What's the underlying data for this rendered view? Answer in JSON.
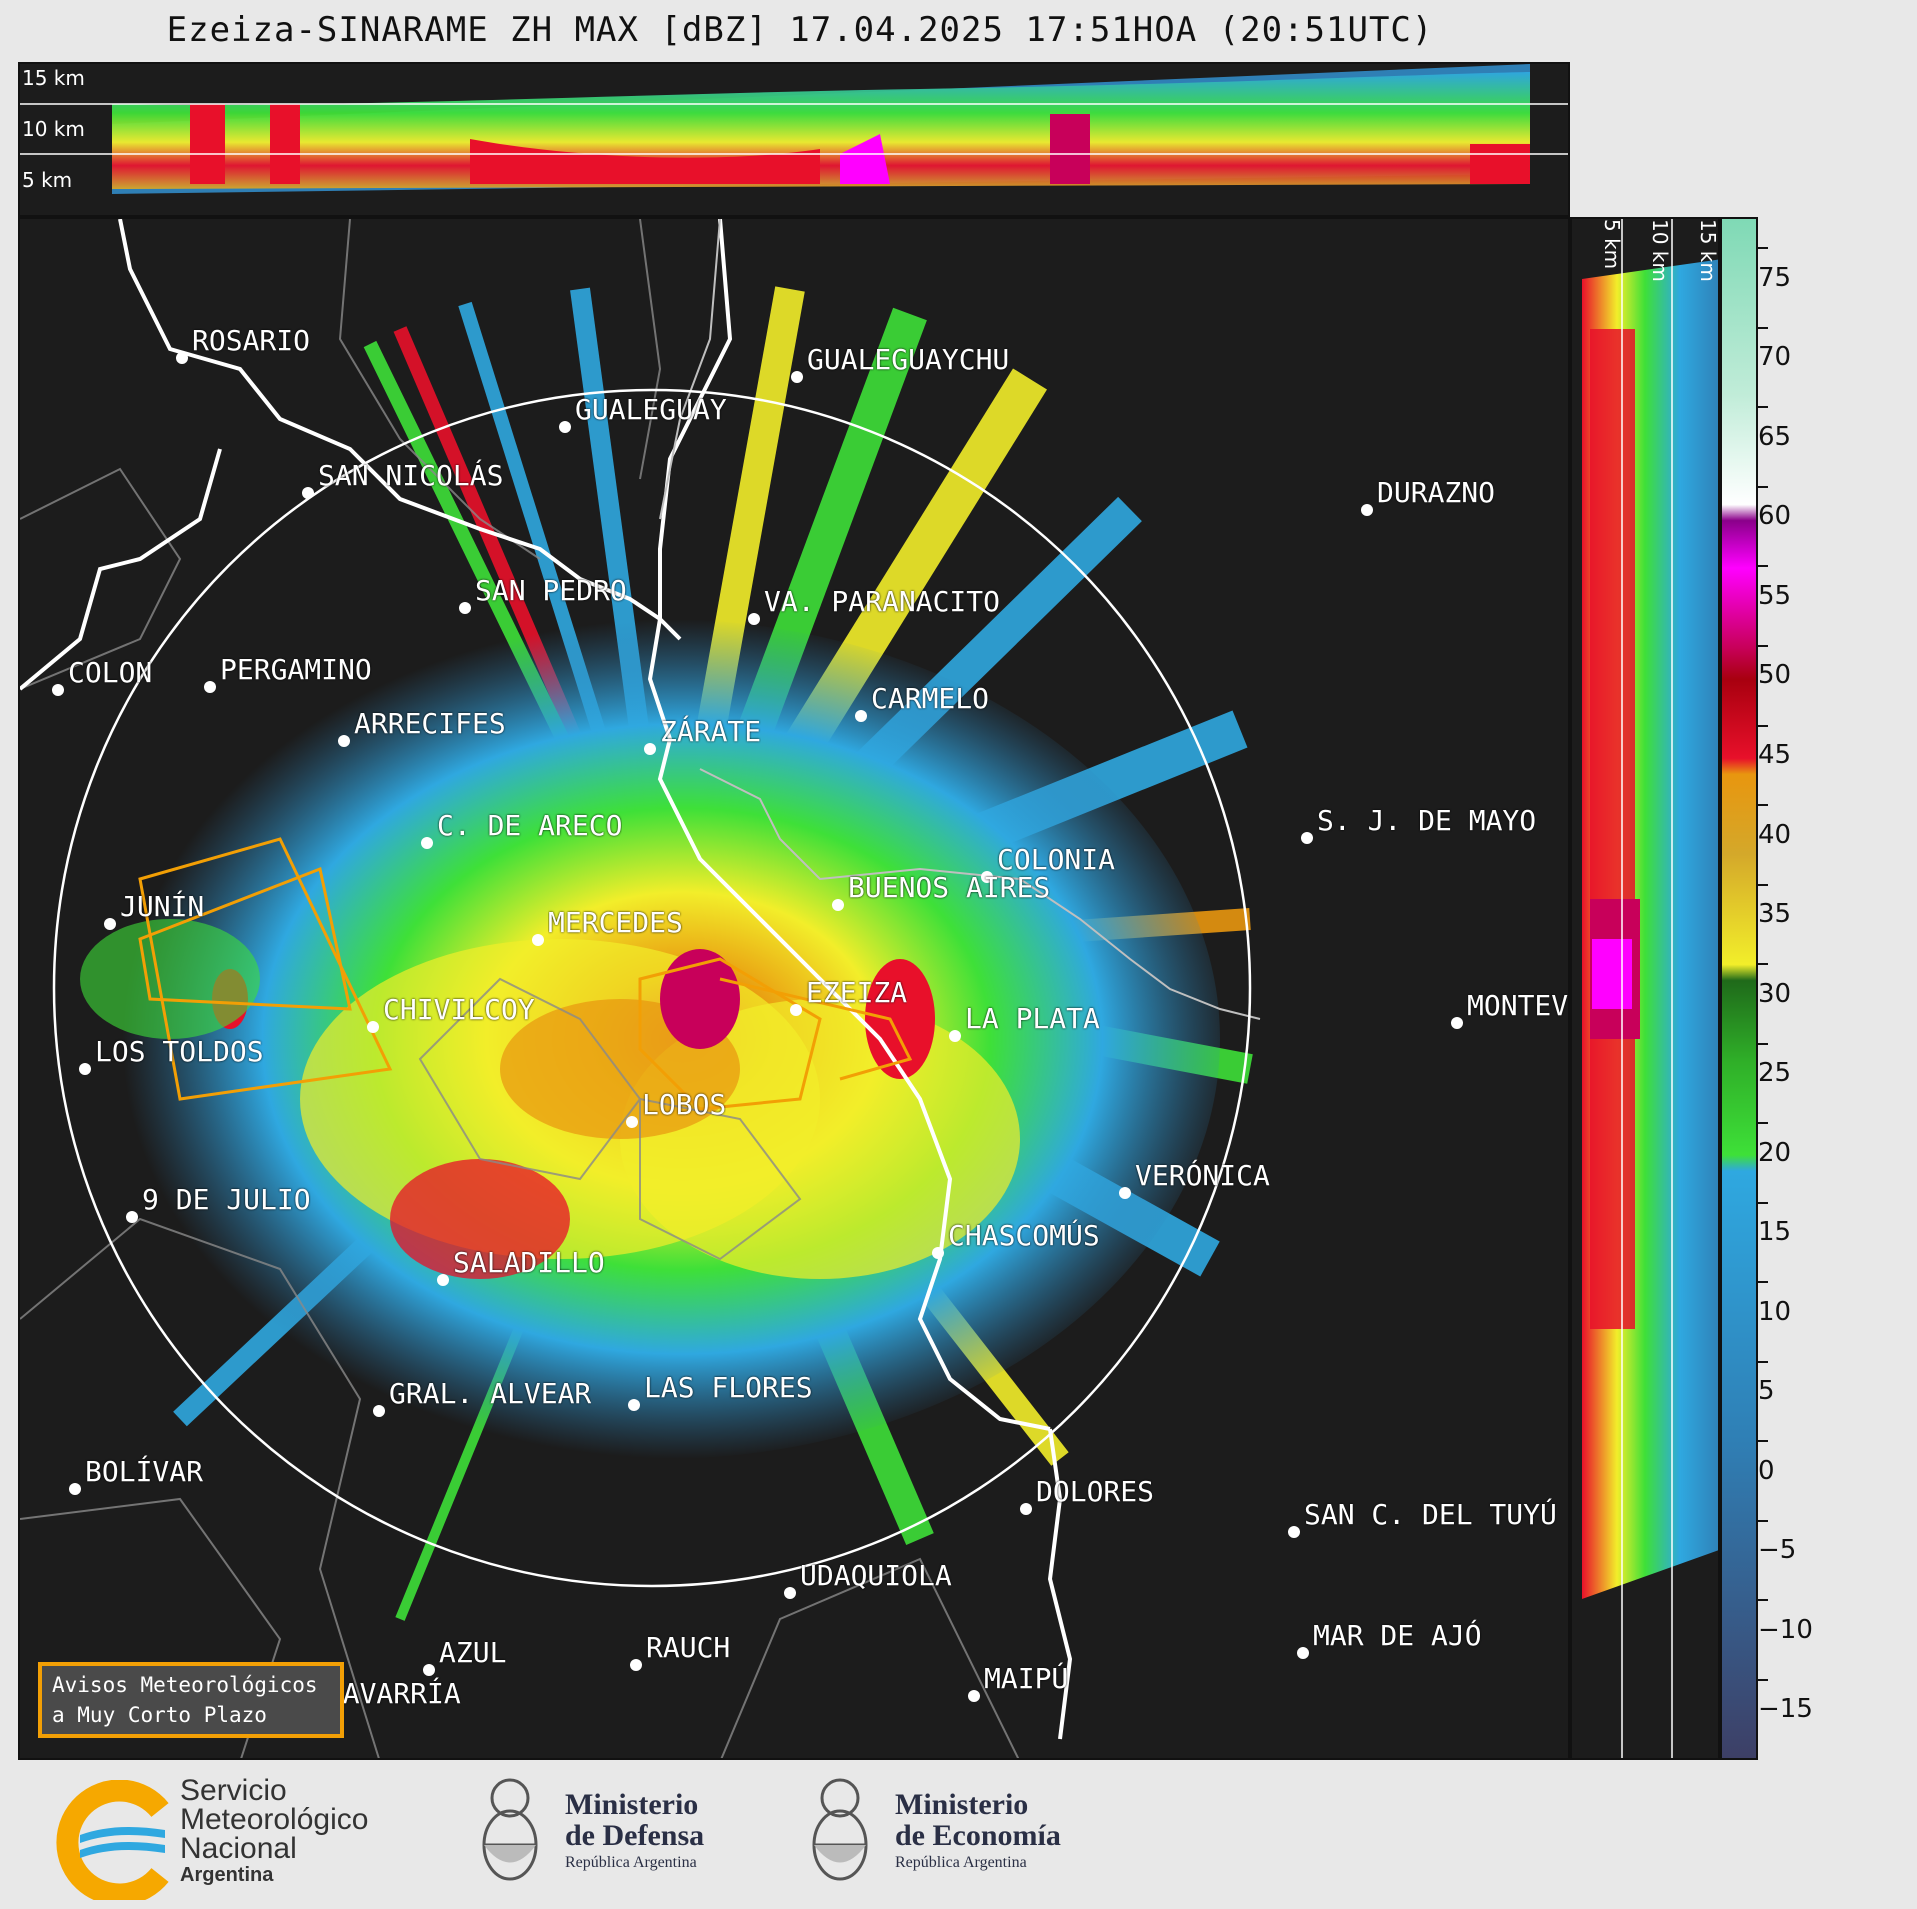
{
  "title": "Ezeiza-SINARAME ZH MAX [dBZ] 17.04.2025 17:51HOA (20:51UTC)",
  "top_panel_labels": [
    "15 km",
    "10 km",
    "5 km"
  ],
  "side_panel_labels": [
    "5 km",
    "10 km",
    "15 km"
  ],
  "cities": [
    {
      "name": "ROSARIO"
    },
    {
      "name": "GUALEGUAYCHU"
    },
    {
      "name": "GUALEGUAY"
    },
    {
      "name": "SAN NICOLÁS"
    },
    {
      "name": "DURAZNO"
    },
    {
      "name": "SAN PEDRO"
    },
    {
      "name": "VA. PARANACITO"
    },
    {
      "name": "COLON"
    },
    {
      "name": "PERGAMINO"
    },
    {
      "name": "CARMELO"
    },
    {
      "name": "ARRECIFES"
    },
    {
      "name": "ZÁRATE"
    },
    {
      "name": "S. J. DE MAYO"
    },
    {
      "name": "C. DE ARECO"
    },
    {
      "name": "COLONIA"
    },
    {
      "name": "JUNÍN"
    },
    {
      "name": "BUENOS AIRES"
    },
    {
      "name": "MERCEDES"
    },
    {
      "name": "EZEIZA"
    },
    {
      "name": "MONTEVIDEO"
    },
    {
      "name": "CHIVILCOY"
    },
    {
      "name": "LA PLATA"
    },
    {
      "name": "LOS TOLDOS"
    },
    {
      "name": "LOBOS"
    },
    {
      "name": "VERÓNICA"
    },
    {
      "name": "9 DE JULIO"
    },
    {
      "name": "CHASCOMÚS"
    },
    {
      "name": "SALADILLO"
    },
    {
      "name": "GRAL. ALVEAR"
    },
    {
      "name": "LAS FLORES"
    },
    {
      "name": "BOLÍVAR"
    },
    {
      "name": "DOLORES"
    },
    {
      "name": "SAN C. DEL TUYÚ"
    },
    {
      "name": "UDAQUIOLA"
    },
    {
      "name": "MAR DE AJÓ"
    },
    {
      "name": "AZUL"
    },
    {
      "name": "RAUCH"
    },
    {
      "name": "OLAVARRÍA"
    },
    {
      "name": "MAIPÚ"
    }
  ],
  "colorbar": {
    "unit": "dBZ",
    "ticks": [
      "75",
      "70",
      "65",
      "60",
      "55",
      "50",
      "45",
      "40",
      "35",
      "30",
      "25",
      "20",
      "15",
      "10",
      "5",
      "0",
      "−5",
      "−10",
      "−15"
    ],
    "stops": [
      {
        "dbz": -20,
        "color": "#3d3f66"
      },
      {
        "dbz": 0,
        "color": "#2f7fb5"
      },
      {
        "dbz": 17,
        "color": "#2fa8e0"
      },
      {
        "dbz": 18,
        "color": "#3ee038"
      },
      {
        "dbz": 24,
        "color": "#2fae28"
      },
      {
        "dbz": 29,
        "color": "#1f6a1a"
      },
      {
        "dbz": 30,
        "color": "#f2ee2a"
      },
      {
        "dbz": 37,
        "color": "#d4a82a"
      },
      {
        "dbz": 42,
        "color": "#e8960f"
      },
      {
        "dbz": 43,
        "color": "#e8102a"
      },
      {
        "dbz": 48,
        "color": "#a8000f"
      },
      {
        "dbz": 50,
        "color": "#c8005a"
      },
      {
        "dbz": 55,
        "color": "#ff00ff"
      },
      {
        "dbz": 58,
        "color": "#8a008a"
      },
      {
        "dbz": 59,
        "color": "#ffffff"
      },
      {
        "dbz": 66,
        "color": "#c0ecd8"
      },
      {
        "dbz": 77,
        "color": "#7fd9b5"
      }
    ]
  },
  "warning_box": {
    "line1": "Avisos Meteorológicos",
    "line2": "a Muy Corto Plazo"
  },
  "footer": {
    "smn": {
      "line1": "Servicio",
      "line2": "Meteorológico",
      "line3": "Nacional",
      "line4": "Argentina"
    },
    "defensa": {
      "line1": "Ministerio",
      "line2": "de Defensa",
      "line3": "República Argentina"
    },
    "economia": {
      "line1": "Ministerio",
      "line2": "de Economía",
      "line3": "República Argentina"
    }
  },
  "colors": {
    "background": "#1c1c1c",
    "range_ring": "#ffffff",
    "warning_polygon": "#f29f05",
    "coastline": "#ffffff",
    "borders": "#8a8a8a"
  }
}
